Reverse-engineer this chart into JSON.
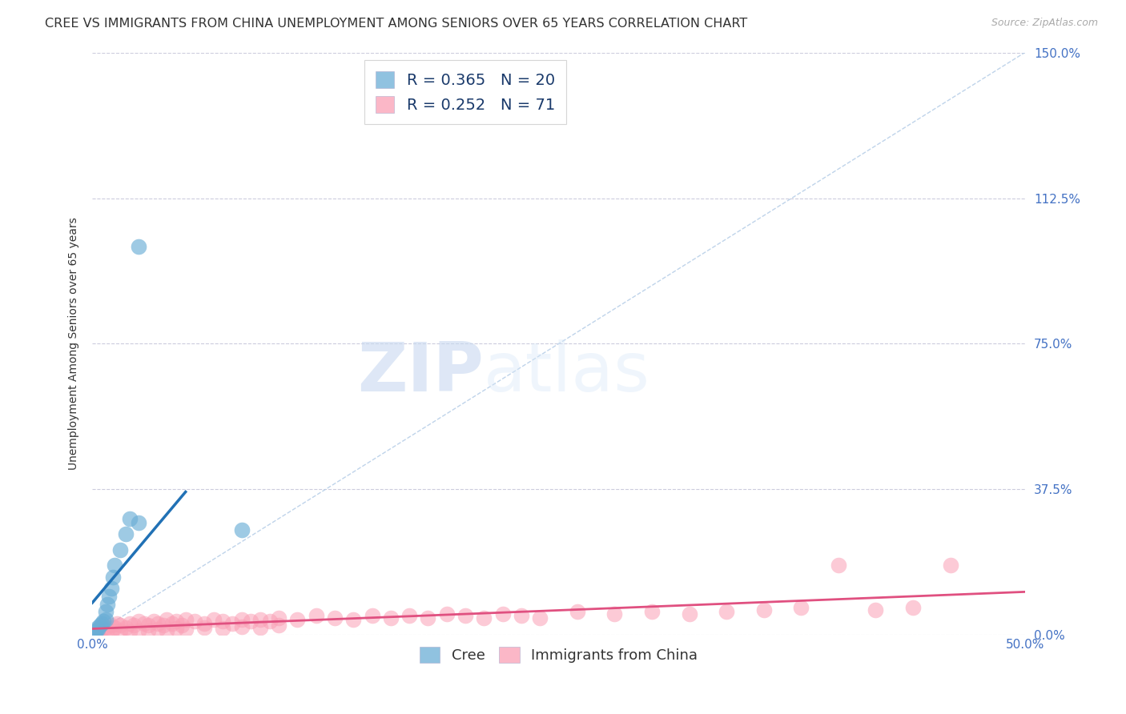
{
  "title": "CREE VS IMMIGRANTS FROM CHINA UNEMPLOYMENT AMONG SENIORS OVER 65 YEARS CORRELATION CHART",
  "source": "Source: ZipAtlas.com",
  "ylabel": "Unemployment Among Seniors over 65 years",
  "xlim": [
    0.0,
    0.5
  ],
  "ylim": [
    0.0,
    1.5
  ],
  "yticks": [
    0.0,
    0.375,
    0.75,
    1.125,
    1.5
  ],
  "ytick_labels": [
    "0.0%",
    "37.5%",
    "75.0%",
    "112.5%",
    "150.0%"
  ],
  "xtick_left_label": "0.0%",
  "xtick_right_label": "50.0%",
  "cree_color": "#6baed6",
  "china_color": "#fa9fb5",
  "cree_line_color": "#2171b5",
  "china_line_color": "#e05080",
  "diag_line_color": "#b8cfe8",
  "cree_R": 0.365,
  "cree_N": 20,
  "china_R": 0.252,
  "china_N": 71,
  "watermark_zip": "ZIP",
  "watermark_atlas": "atlas",
  "background_color": "#ffffff",
  "grid_color": "#ccccdd",
  "title_fontsize": 11.5,
  "axis_label_fontsize": 10,
  "tick_fontsize": 11,
  "scatter_size": 200,
  "cree_scatter_x": [
    0.001,
    0.002,
    0.003,
    0.003,
    0.004,
    0.005,
    0.006,
    0.007,
    0.007,
    0.008,
    0.009,
    0.01,
    0.011,
    0.012,
    0.015,
    0.018,
    0.02,
    0.025,
    0.025,
    0.08
  ],
  "cree_scatter_y": [
    0.005,
    0.01,
    0.015,
    0.02,
    0.025,
    0.03,
    0.035,
    0.04,
    0.06,
    0.08,
    0.1,
    0.12,
    0.15,
    0.18,
    0.22,
    0.26,
    0.3,
    0.29,
    1.0,
    0.27
  ],
  "china_scatter_x": [
    0.003,
    0.005,
    0.007,
    0.008,
    0.01,
    0.012,
    0.013,
    0.015,
    0.018,
    0.02,
    0.022,
    0.025,
    0.028,
    0.03,
    0.033,
    0.035,
    0.038,
    0.04,
    0.043,
    0.045,
    0.048,
    0.05,
    0.055,
    0.06,
    0.065,
    0.07,
    0.075,
    0.08,
    0.085,
    0.09,
    0.095,
    0.1,
    0.11,
    0.12,
    0.13,
    0.14,
    0.15,
    0.16,
    0.17,
    0.18,
    0.19,
    0.2,
    0.21,
    0.22,
    0.23,
    0.24,
    0.26,
    0.28,
    0.3,
    0.32,
    0.34,
    0.36,
    0.38,
    0.4,
    0.42,
    0.44,
    0.46,
    0.01,
    0.015,
    0.02,
    0.025,
    0.03,
    0.035,
    0.04,
    0.045,
    0.05,
    0.06,
    0.07,
    0.08,
    0.09,
    0.1
  ],
  "china_scatter_y": [
    0.01,
    0.015,
    0.02,
    0.015,
    0.025,
    0.02,
    0.03,
    0.025,
    0.02,
    0.03,
    0.025,
    0.035,
    0.03,
    0.025,
    0.035,
    0.03,
    0.025,
    0.04,
    0.03,
    0.035,
    0.025,
    0.04,
    0.035,
    0.03,
    0.04,
    0.035,
    0.03,
    0.04,
    0.035,
    0.04,
    0.035,
    0.045,
    0.04,
    0.05,
    0.045,
    0.04,
    0.05,
    0.045,
    0.05,
    0.045,
    0.055,
    0.05,
    0.045,
    0.055,
    0.05,
    0.045,
    0.06,
    0.055,
    0.06,
    0.055,
    0.06,
    0.065,
    0.07,
    0.18,
    0.065,
    0.07,
    0.18,
    0.005,
    0.01,
    0.008,
    0.012,
    0.01,
    0.015,
    0.012,
    0.018,
    0.015,
    0.02,
    0.018,
    0.022,
    0.02,
    0.025
  ]
}
